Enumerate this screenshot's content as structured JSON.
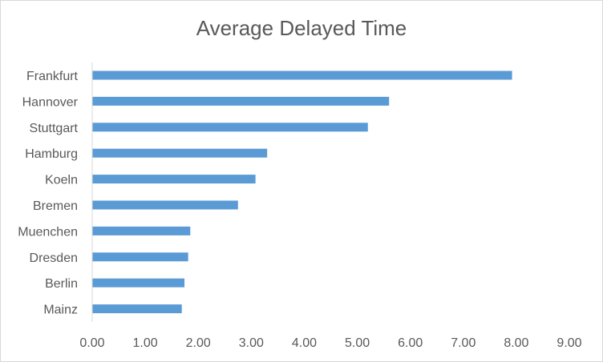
{
  "chart_data": {
    "type": "bar",
    "orientation": "horizontal",
    "title": "Average Delayed Time",
    "xlabel": "",
    "ylabel": "",
    "categories": [
      "Frankfurt",
      "Hannover",
      "Stuttgart",
      "Hamburg",
      "Koeln",
      "Bremen",
      "Muenchen",
      "Dresden",
      "Berlin",
      "Mainz"
    ],
    "values": [
      7.92,
      5.6,
      5.2,
      3.3,
      3.08,
      2.75,
      1.85,
      1.81,
      1.74,
      1.69
    ],
    "xlim": [
      0,
      9
    ],
    "x_ticks": [
      "0.00",
      "1.00",
      "2.00",
      "3.00",
      "4.00",
      "5.00",
      "6.00",
      "7.00",
      "8.00",
      "9.00"
    ],
    "grid": false,
    "legend": "none",
    "bar_color": "#5b9bd5",
    "text_color": "#595959",
    "axis_color": "#d9d9d9"
  }
}
